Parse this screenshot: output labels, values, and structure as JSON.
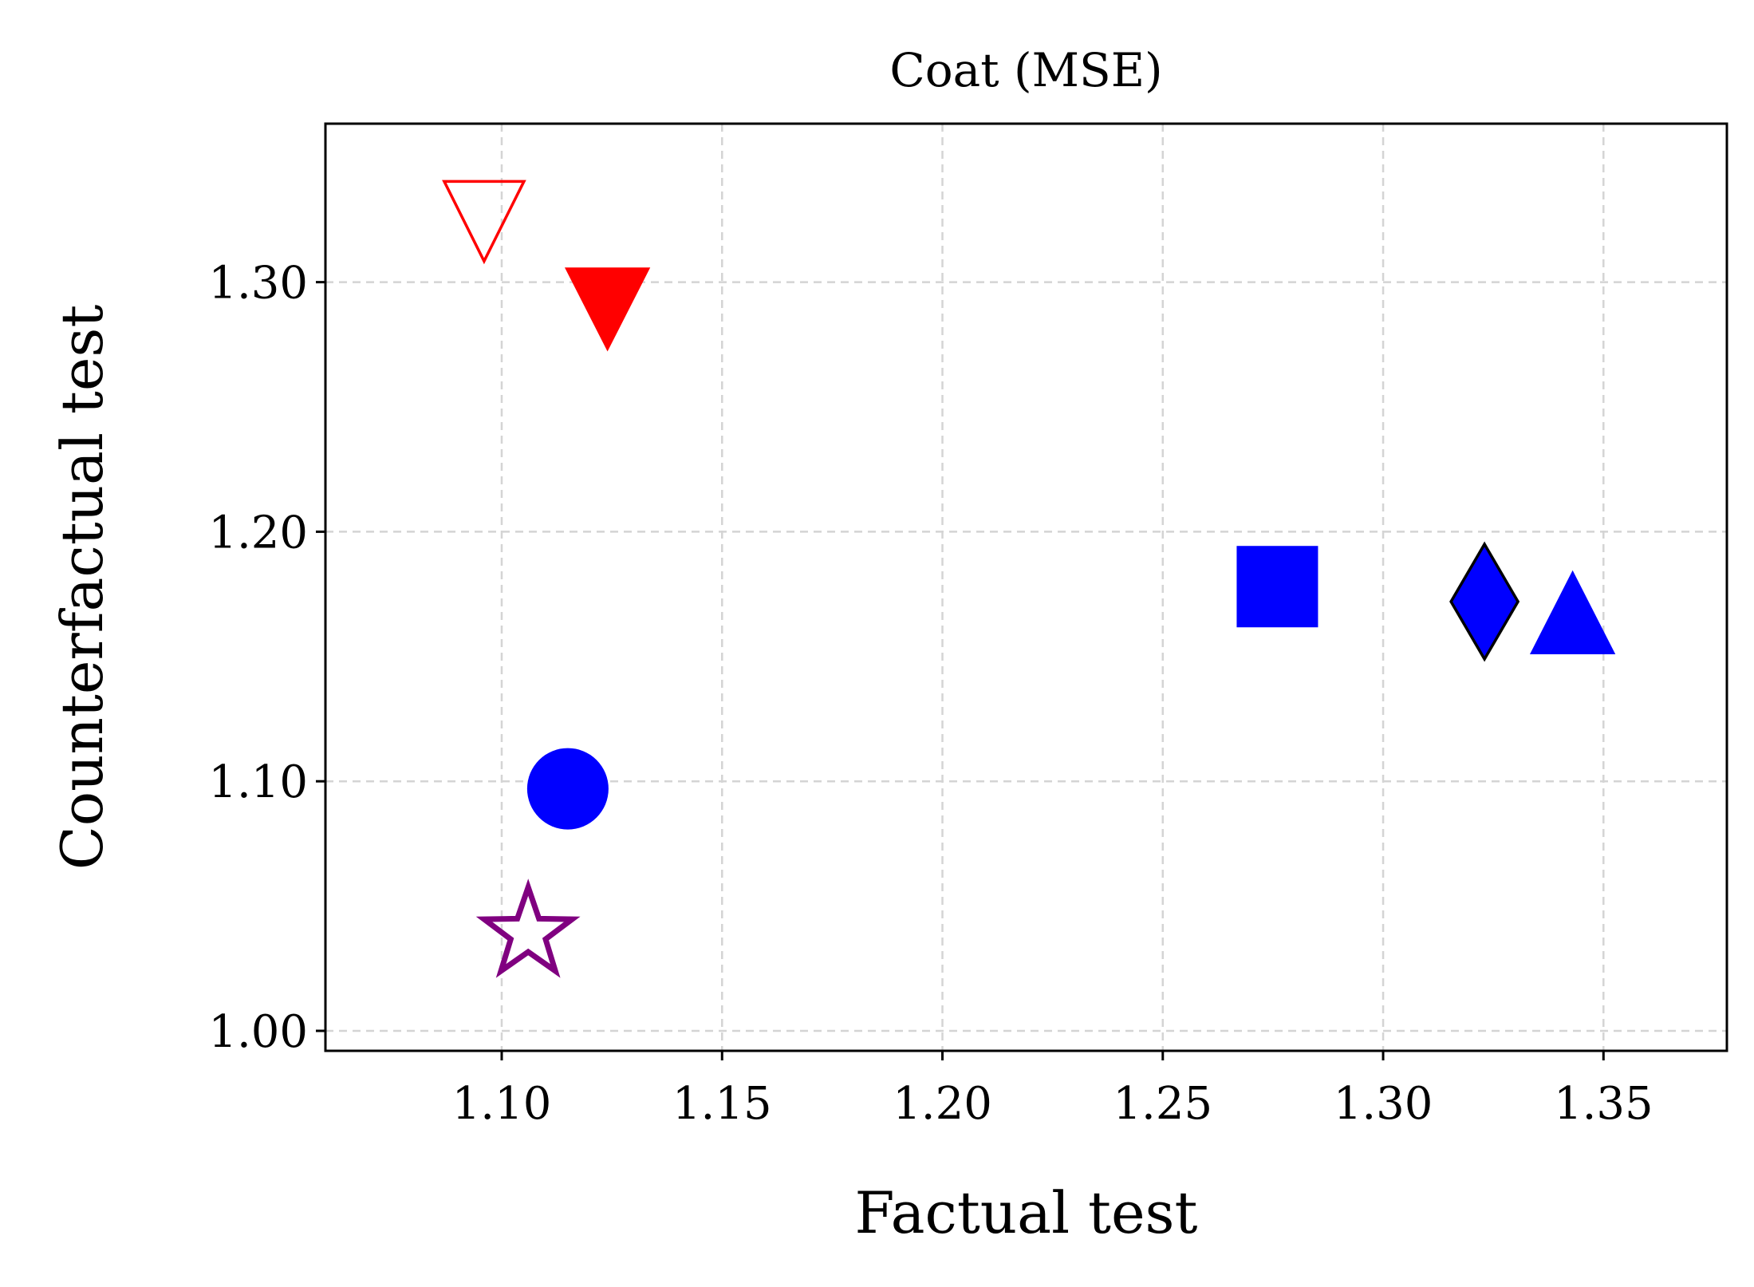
{
  "chart_data": {
    "type": "scatter",
    "title": "Coat (MSE)",
    "xlabel": "Factual test",
    "ylabel": "Counterfactual test",
    "xlim": [
      1.06,
      1.378
    ],
    "ylim": [
      0.992,
      1.3635
    ],
    "xticks": [
      1.1,
      1.15,
      1.2,
      1.25,
      1.3,
      1.35
    ],
    "xtick_labels": [
      "1.10",
      "1.15",
      "1.20",
      "1.25",
      "1.30",
      "1.35"
    ],
    "yticks": [
      1.0,
      1.1,
      1.2,
      1.3
    ],
    "ytick_labels": [
      "1.00",
      "1.10",
      "1.20",
      "1.30"
    ],
    "grid": true,
    "points": [
      {
        "marker": "triangle-down-open",
        "x": 1.096,
        "y": 1.318,
        "color": "#ff0000",
        "fill": "none"
      },
      {
        "marker": "triangle-down",
        "x": 1.124,
        "y": 1.287,
        "color": "#ff0000",
        "fill": "#ff0000"
      },
      {
        "marker": "square",
        "x": 1.276,
        "y": 1.178,
        "color": "#0000ff",
        "fill": "#0000ff"
      },
      {
        "marker": "diamond",
        "x": 1.323,
        "y": 1.172,
        "color": "#000000",
        "fill": "#0000ff"
      },
      {
        "marker": "triangle-up",
        "x": 1.343,
        "y": 1.164,
        "color": "#0000ff",
        "fill": "#0000ff"
      },
      {
        "marker": "circle",
        "x": 1.115,
        "y": 1.097,
        "color": "#0000ff",
        "fill": "#0000ff"
      },
      {
        "marker": "star-open",
        "x": 1.106,
        "y": 1.039,
        "color": "#800080",
        "fill": "none"
      }
    ]
  }
}
